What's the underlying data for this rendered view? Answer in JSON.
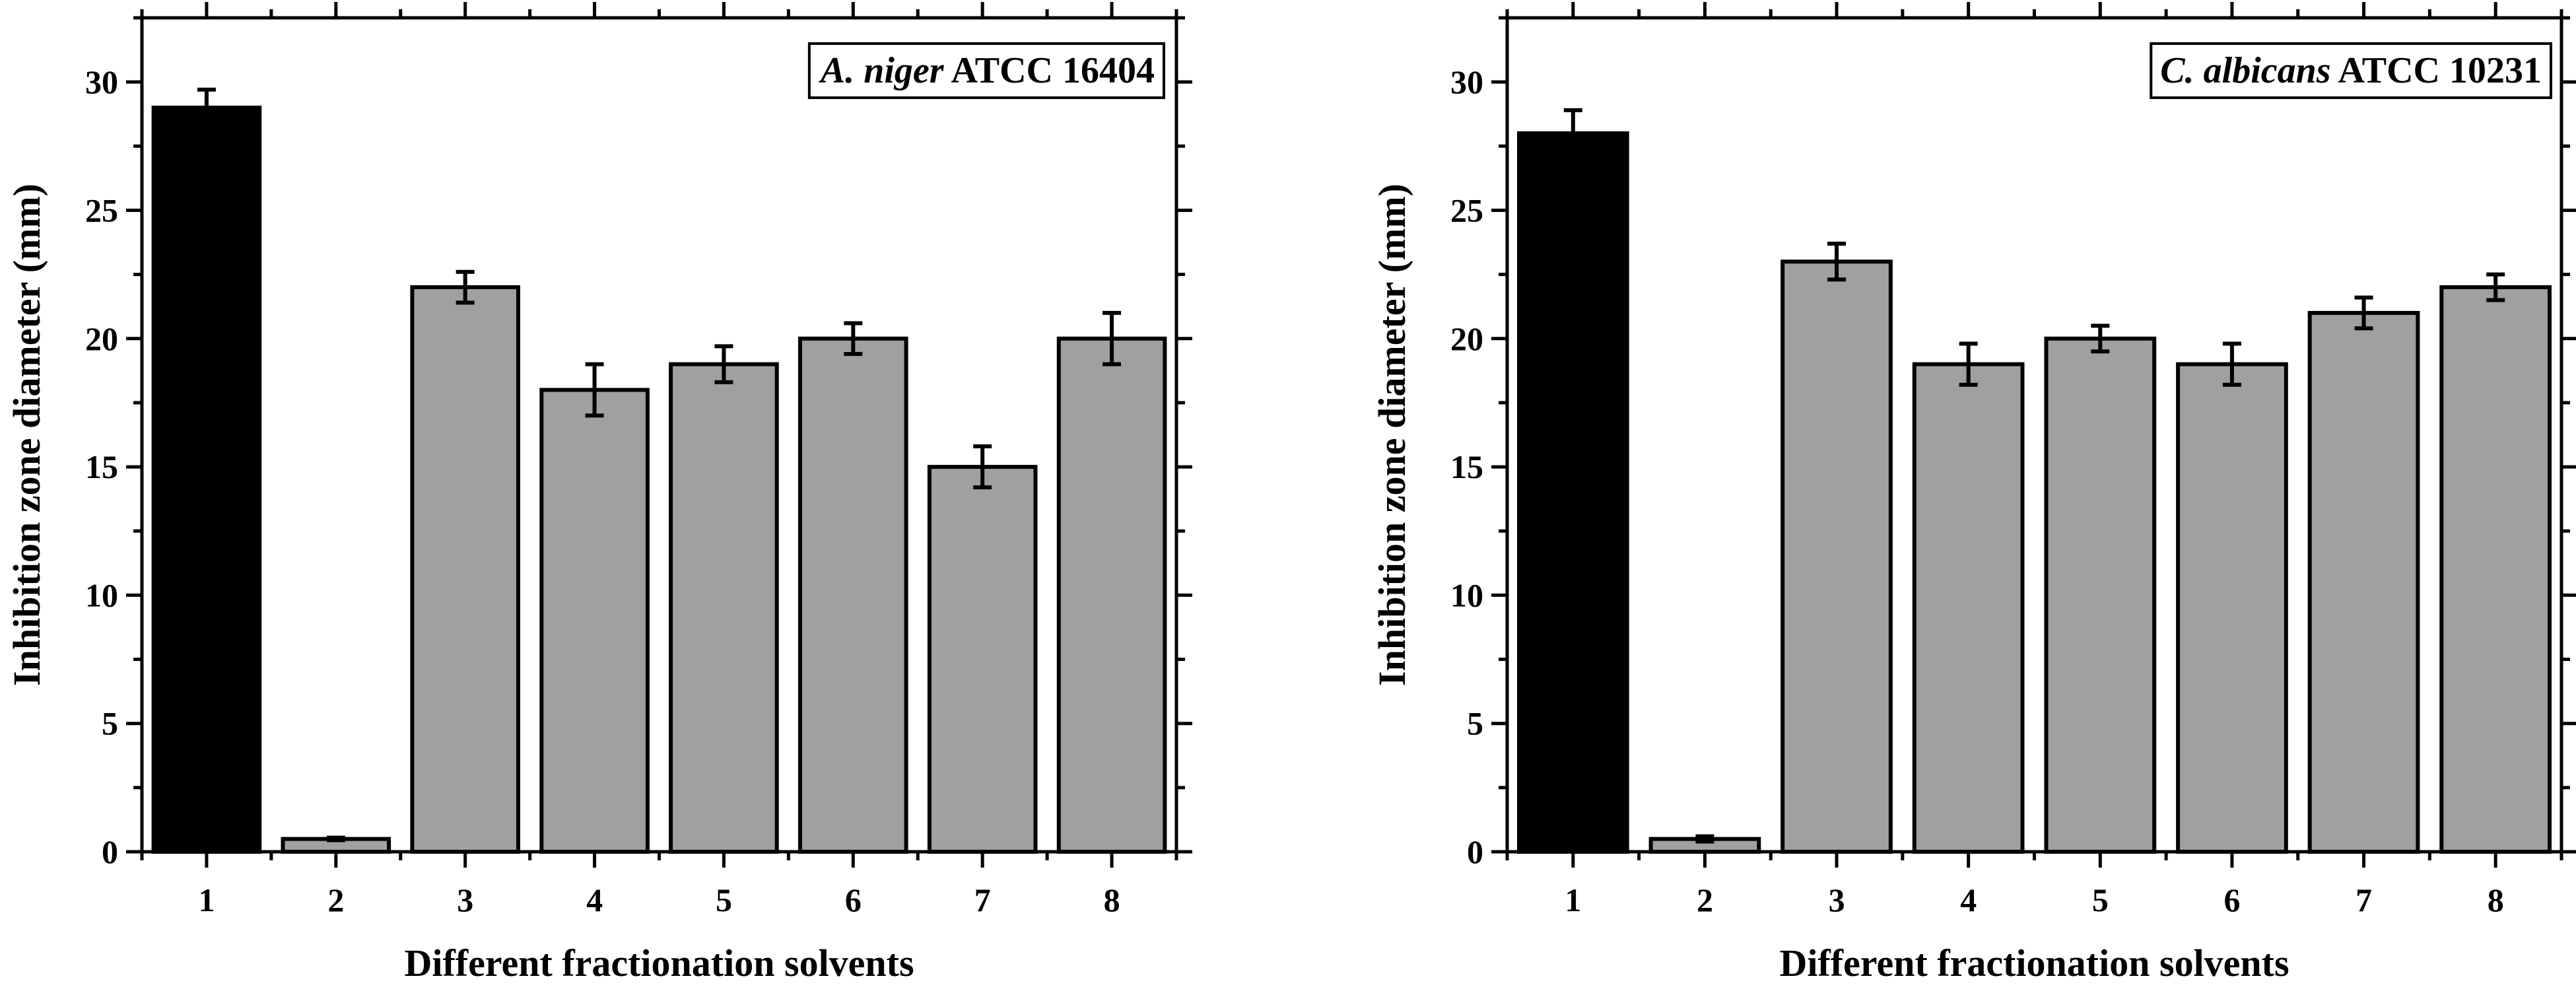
{
  "chart_data": [
    {
      "type": "bar",
      "title": "",
      "legend_species": "A. niger",
      "legend_strain": "ATCC 16404",
      "legend_position": "top-right",
      "xlabel": "Different fractionation solvents",
      "ylabel": "Inhibition zone diameter (mm)",
      "categories": [
        "1",
        "2",
        "3",
        "4",
        "5",
        "6",
        "7",
        "8"
      ],
      "values": [
        29,
        0.5,
        22,
        18,
        19,
        20,
        15,
        20
      ],
      "errors": [
        0.7,
        0.05,
        0.6,
        1.0,
        0.7,
        0.6,
        0.8,
        1.0
      ],
      "colors": [
        "#000000",
        "#a0a0a0",
        "#a0a0a0",
        "#a0a0a0",
        "#a0a0a0",
        "#a0a0a0",
        "#a0a0a0",
        "#a0a0a0"
      ],
      "ylim": [
        0,
        32.5
      ],
      "yticks": [
        "0",
        "5",
        "10",
        "15",
        "20",
        "25",
        "30"
      ],
      "ytick_values": [
        0,
        5,
        10,
        15,
        20,
        25,
        30
      ],
      "grid": false
    },
    {
      "type": "bar",
      "title": "",
      "legend_species": "C. albicans",
      "legend_strain": "ATCC 10231",
      "legend_position": "top-right",
      "xlabel": "Different fractionation solvents",
      "ylabel": "Inhibition zone diameter (mm)",
      "categories": [
        "1",
        "2",
        "3",
        "4",
        "5",
        "6",
        "7",
        "8"
      ],
      "values": [
        28,
        0.5,
        23,
        19,
        20,
        19,
        21,
        22
      ],
      "errors": [
        0.9,
        0.1,
        0.7,
        0.8,
        0.5,
        0.8,
        0.6,
        0.5
      ],
      "colors": [
        "#000000",
        "#a0a0a0",
        "#a0a0a0",
        "#a0a0a0",
        "#a0a0a0",
        "#a0a0a0",
        "#a0a0a0",
        "#a0a0a0"
      ],
      "ylim": [
        0,
        32.5
      ],
      "yticks": [
        "0",
        "5",
        "10",
        "15",
        "20",
        "25",
        "30"
      ],
      "ytick_values": [
        0,
        5,
        10,
        15,
        20,
        25,
        30
      ],
      "grid": false
    }
  ]
}
